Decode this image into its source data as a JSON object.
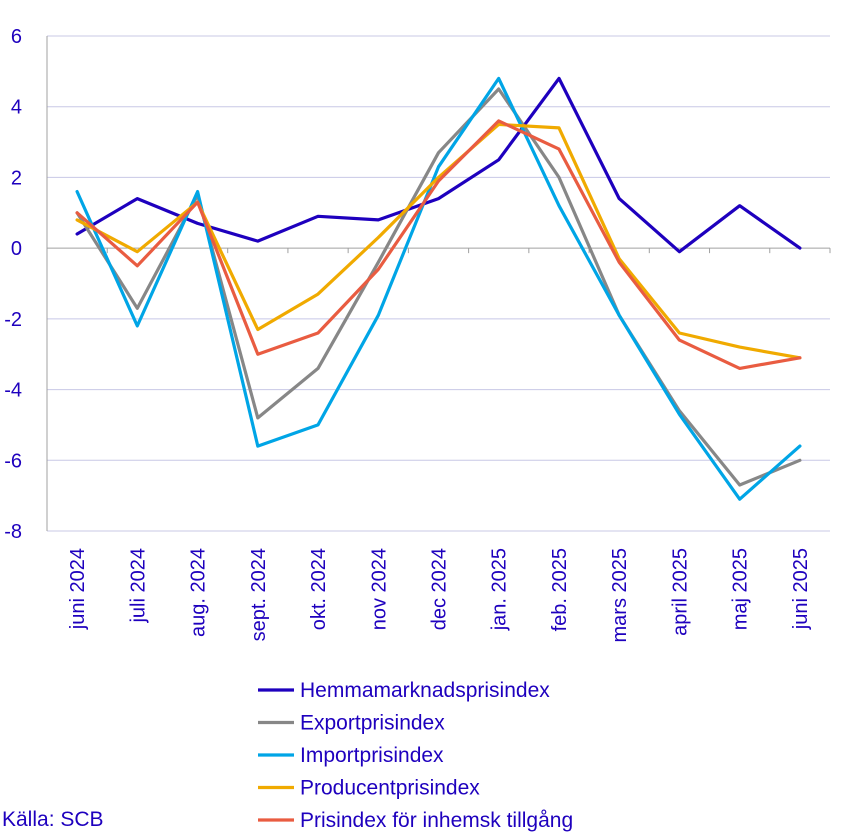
{
  "chart_data": {
    "type": "line",
    "title": "",
    "xlabel": "",
    "ylabel": "",
    "ylim": [
      -8,
      6
    ],
    "yticks": [
      6,
      4,
      2,
      0,
      -2,
      -4,
      -6,
      -8
    ],
    "ytick_labels": [
      "6",
      "4",
      "2",
      "0",
      "-2",
      "-4",
      "-6",
      "-8"
    ],
    "grid": true,
    "categories": [
      "juni 2024",
      "juli 2024",
      "aug. 2024",
      "sept. 2024",
      "okt. 2024",
      "nov 2024",
      "dec 2024",
      "jan. 2025",
      "feb. 2025",
      "mars 2025",
      "april 2025",
      "maj 2025",
      "juni 2025"
    ],
    "series": [
      {
        "name": "Hemmamarknadsprisindex",
        "color": "#1e00be",
        "values": [
          0.4,
          1.4,
          0.7,
          0.2,
          0.9,
          0.8,
          1.4,
          2.5,
          4.8,
          1.4,
          -0.1,
          1.2,
          0.0
        ]
      },
      {
        "name": "Exportprisindex",
        "color": "#878787",
        "values": [
          1.0,
          -1.7,
          1.5,
          -4.8,
          -3.4,
          -0.4,
          2.7,
          4.5,
          2.0,
          -1.9,
          -4.6,
          -6.7,
          -6.0
        ]
      },
      {
        "name": "Importprisindex",
        "color": "#00a5e6",
        "values": [
          1.6,
          -2.2,
          1.6,
          -5.6,
          -5.0,
          -1.9,
          2.3,
          4.8,
          1.2,
          -1.9,
          -4.7,
          -7.1,
          -5.6
        ]
      },
      {
        "name": "Producentprisindex",
        "color": "#f0aa00",
        "values": [
          0.8,
          -0.1,
          1.3,
          -2.3,
          -1.3,
          0.3,
          2.0,
          3.5,
          3.4,
          -0.3,
          -2.4,
          -2.8,
          -3.1
        ]
      },
      {
        "name": "Prisindex för inhemsk tillgång",
        "color": "#e95c41",
        "values": [
          1.0,
          -0.5,
          1.3,
          -3.0,
          -2.4,
          -0.6,
          1.9,
          3.6,
          2.8,
          -0.4,
          -2.6,
          -3.4,
          -3.1
        ]
      }
    ],
    "legend_position": "bottom"
  },
  "colors": {
    "axis_text": "#1e00be",
    "grid": "#c8c8e6",
    "axis": "#a0a0a0"
  },
  "source": "Källa: SCB"
}
